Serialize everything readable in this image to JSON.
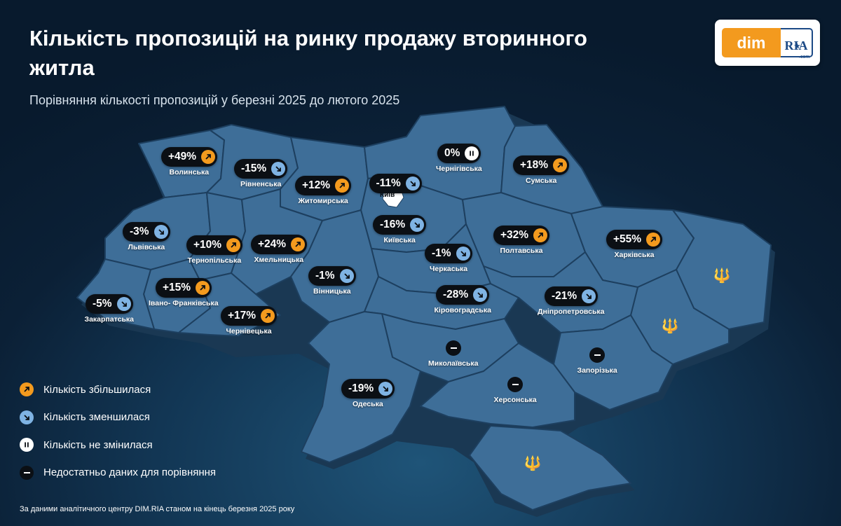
{
  "header": {
    "title": "Кількість пропозицій на ринку продажу вторинного житла",
    "subtitle": "Порівняння кількості пропозицій у березні 2025 до лютого 2025"
  },
  "logo": {
    "left": "dim",
    "right": "RIA",
    "suffix": ".com"
  },
  "colors": {
    "increase": "#f39a1e",
    "decrease": "#7fb3e3",
    "unchanged": "#ffffff",
    "no_data": "#0b0f14",
    "region_fill": "#3e6e98"
  },
  "kyiv_city_label": "Київ",
  "regions": [
    {
      "id": "volyn",
      "name": "Волинська",
      "value": "+49%",
      "status": "increase"
    },
    {
      "id": "rivne",
      "name": "Рівненська",
      "value": "-15%",
      "status": "decrease"
    },
    {
      "id": "zhytomyr",
      "name": "Житомирська",
      "value": "+12%",
      "status": "increase"
    },
    {
      "id": "kyiv-city",
      "name": "Київ",
      "value": "-11%",
      "status": "decrease"
    },
    {
      "id": "chernihiv",
      "name": "Чернігівська",
      "value": "0%",
      "status": "unchanged"
    },
    {
      "id": "sumy",
      "name": "Сумська",
      "value": "+18%",
      "status": "increase"
    },
    {
      "id": "lviv",
      "name": "Львівська",
      "value": "-3%",
      "status": "decrease"
    },
    {
      "id": "ternopil",
      "name": "Тернопільська",
      "value": "+10%",
      "status": "increase"
    },
    {
      "id": "khmelnytskyi",
      "name": "Хмельницька",
      "value": "+24%",
      "status": "increase"
    },
    {
      "id": "kyiv-oblast",
      "name": "Київська",
      "value": "-16%",
      "status": "decrease"
    },
    {
      "id": "poltava",
      "name": "Полтавська",
      "value": "+32%",
      "status": "increase"
    },
    {
      "id": "kharkiv",
      "name": "Харківська",
      "value": "+55%",
      "status": "increase"
    },
    {
      "id": "cherkasy",
      "name": "Черкаська",
      "value": "-1%",
      "status": "decrease"
    },
    {
      "id": "vinnytsia",
      "name": "Вінницька",
      "value": "-1%",
      "status": "decrease"
    },
    {
      "id": "ivano-frankivsk",
      "name": "Івано- Франківська",
      "value": "+15%",
      "status": "increase"
    },
    {
      "id": "zakarpattia",
      "name": "Закарпатська",
      "value": "-5%",
      "status": "decrease"
    },
    {
      "id": "chernivtsi",
      "name": "Чернівецька",
      "value": "+17%",
      "status": "increase"
    },
    {
      "id": "kirovohrad",
      "name": "Кіровоградська",
      "value": "-28%",
      "status": "decrease"
    },
    {
      "id": "dnipro",
      "name": "Дніпропетровська",
      "value": "-21%",
      "status": "decrease"
    },
    {
      "id": "mykolaiv",
      "name": "Миколаївська",
      "value": "",
      "status": "no_data"
    },
    {
      "id": "zaporizhzhia",
      "name": "Запорізька",
      "value": "",
      "status": "no_data"
    },
    {
      "id": "odesa",
      "name": "Одеська",
      "value": "-19%",
      "status": "decrease"
    },
    {
      "id": "kherson",
      "name": "Херсонська",
      "value": "",
      "status": "no_data"
    }
  ],
  "legend": {
    "increase": "Кількість збільшилася",
    "decrease": "Кількість зменшилася",
    "unchanged": "Кількість не змінилася",
    "no_data": "Недостатньо даних для порівняння"
  },
  "footer": {
    "source": "За даними аналітичного центру DIM.RIA станом на кінець березня 2025 року"
  },
  "icons": {
    "increase": "arrow-up-right-icon",
    "decrease": "arrow-down-right-icon",
    "unchanged": "pause-icon",
    "no_data": "dash-icon",
    "trident": "trident-icon"
  }
}
